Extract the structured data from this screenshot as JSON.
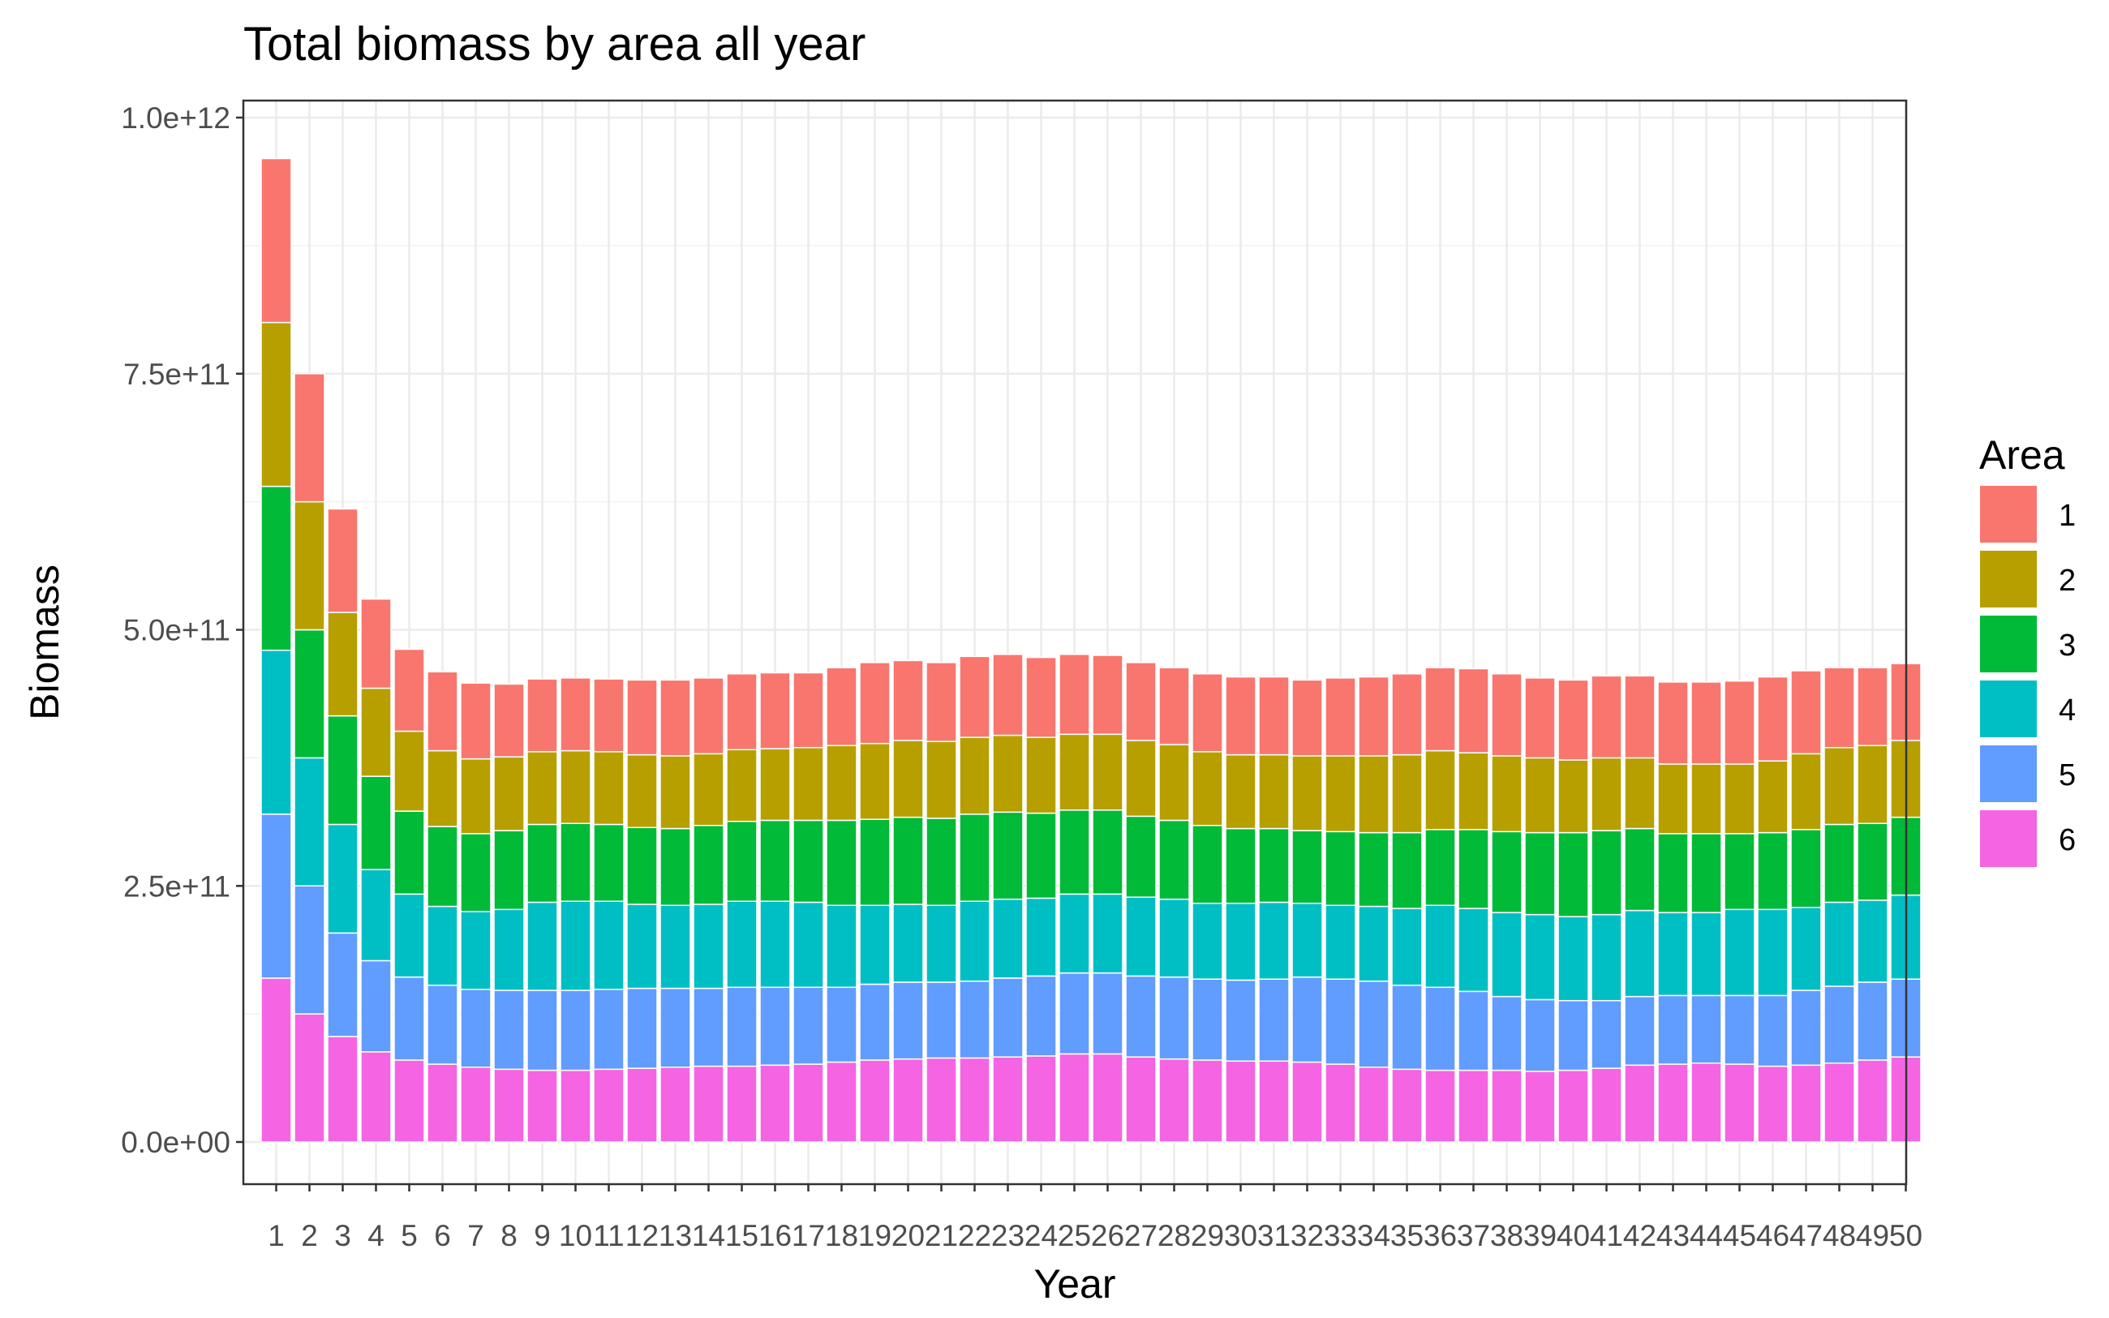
{
  "chart_data": {
    "type": "bar",
    "stacked": true,
    "title": "Total biomass by area all year",
    "xlabel": "Year",
    "ylabel": "Biomass",
    "ylim": [
      0,
      1000000000000
    ],
    "yticks": [
      0,
      250000000000,
      500000000000,
      750000000000,
      1000000000000
    ],
    "ytick_labels": [
      "0.0e+00",
      "2.5e+11",
      "5.0e+11",
      "7.5e+11",
      "1.0e+12"
    ],
    "grid": true,
    "legend": {
      "title": "Area",
      "position": "right"
    },
    "categories": [
      "1",
      "2",
      "3",
      "4",
      "5",
      "6",
      "7",
      "8",
      "9",
      "10",
      "11",
      "12",
      "13",
      "14",
      "15",
      "16",
      "17",
      "18",
      "19",
      "20",
      "21",
      "22",
      "23",
      "24",
      "25",
      "26",
      "27",
      "28",
      "29",
      "30",
      "31",
      "32",
      "33",
      "34",
      "35",
      "36",
      "37",
      "38",
      "39",
      "40",
      "41",
      "42",
      "43",
      "44",
      "45",
      "46",
      "47",
      "48",
      "49",
      "50"
    ],
    "series": [
      {
        "name": "6",
        "color": "#F564E3",
        "values": [
          160000000000.0,
          125000000000.0,
          103000000000.0,
          88000000000.0,
          80000000000.0,
          76000000000.0,
          73000000000.0,
          71000000000.0,
          70000000000.0,
          70000000000.0,
          71000000000.0,
          72000000000.0,
          73000000000.0,
          74000000000.0,
          74000000000.0,
          75000000000.0,
          76000000000.0,
          78000000000.0,
          80000000000.0,
          81000000000.0,
          82000000000.0,
          82000000000.0,
          83000000000.0,
          84000000000.0,
          86000000000.0,
          86000000000.0,
          83000000000.0,
          81000000000.0,
          80000000000.0,
          79000000000.0,
          79000000000.0,
          78000000000.0,
          76000000000.0,
          73000000000.0,
          71000000000.0,
          70000000000.0,
          70000000000.0,
          70000000000.0,
          69000000000.0,
          70000000000.0,
          72000000000.0,
          75000000000.0,
          76000000000.0,
          77000000000.0,
          76000000000.0,
          74000000000.0,
          75000000000.0,
          77000000000.0,
          80000000000.0,
          83000000000.0
        ]
      },
      {
        "name": "5",
        "color": "#619CFF",
        "values": [
          160000000000.0,
          125000000000.0,
          101000000000.0,
          89000000000.0,
          81000000000.0,
          77000000000.0,
          76000000000.0,
          77000000000.0,
          78000000000.0,
          78000000000.0,
          78000000000.0,
          78000000000.0,
          77000000000.0,
          76000000000.0,
          77000000000.0,
          76000000000.0,
          75000000000.0,
          73000000000.0,
          74000000000.0,
          75000000000.0,
          74000000000.0,
          75000000000.0,
          77000000000.0,
          78000000000.0,
          79000000000.0,
          79000000000.0,
          79000000000.0,
          80000000000.0,
          79000000000.0,
          79000000000.0,
          80000000000.0,
          83000000000.0,
          83000000000.0,
          84000000000.0,
          82000000000.0,
          81000000000.0,
          77000000000.0,
          72000000000.0,
          70000000000.0,
          68000000000.0,
          66000000000.0,
          67000000000.0,
          67000000000.0,
          66000000000.0,
          67000000000.0,
          69000000000.0,
          73000000000.0,
          75000000000.0,
          76000000000.0,
          76000000000.0
        ]
      },
      {
        "name": "4",
        "color": "#00BFC4",
        "values": [
          160000000000.0,
          125000000000.0,
          106000000000.0,
          89000000000.0,
          81000000000.0,
          77000000000.0,
          76000000000.0,
          79000000000.0,
          86000000000.0,
          87000000000.0,
          86000000000.0,
          82000000000.0,
          81000000000.0,
          82000000000.0,
          84000000000.0,
          84000000000.0,
          83000000000.0,
          80000000000.0,
          77000000000.0,
          76000000000.0,
          75000000000.0,
          78000000000.0,
          77000000000.0,
          76000000000.0,
          77000000000.0,
          77000000000.0,
          77000000000.0,
          76000000000.0,
          74000000000.0,
          75000000000.0,
          75000000000.0,
          72000000000.0,
          72000000000.0,
          73000000000.0,
          75000000000.0,
          80000000000.0,
          81000000000.0,
          82000000000.0,
          83000000000.0,
          82000000000.0,
          84000000000.0,
          84000000000.0,
          81000000000.0,
          81000000000.0,
          84000000000.0,
          84000000000.0,
          81000000000.0,
          82000000000.0,
          80000000000.0,
          82000000000.0
        ]
      },
      {
        "name": "3",
        "color": "#00BA38",
        "values": [
          160000000000.0,
          125000000000.0,
          106000000000.0,
          91000000000.0,
          81000000000.0,
          78000000000.0,
          76000000000.0,
          77000000000.0,
          76000000000.0,
          76000000000.0,
          75000000000.0,
          75000000000.0,
          75000000000.0,
          77000000000.0,
          78000000000.0,
          79000000000.0,
          80000000000.0,
          83000000000.0,
          84000000000.0,
          85000000000.0,
          85000000000.0,
          85000000000.0,
          85000000000.0,
          83000000000.0,
          82000000000.0,
          82000000000.0,
          79000000000.0,
          77000000000.0,
          76000000000.0,
          73000000000.0,
          72000000000.0,
          71000000000.0,
          72000000000.0,
          72000000000.0,
          74000000000.0,
          74000000000.0,
          77000000000.0,
          79000000000.0,
          80000000000.0,
          82000000000.0,
          82000000000.0,
          80000000000.0,
          77000000000.0,
          77000000000.0,
          74000000000.0,
          75000000000.0,
          76000000000.0,
          76000000000.0,
          75000000000.0,
          76000000000.0
        ]
      },
      {
        "name": "2",
        "color": "#B79F00",
        "values": [
          160000000000.0,
          125000000000.0,
          101000000000.0,
          86000000000.0,
          78000000000.0,
          74000000000.0,
          73000000000.0,
          72000000000.0,
          71000000000.0,
          71000000000.0,
          71000000000.0,
          71000000000.0,
          71000000000.0,
          70000000000.0,
          70000000000.0,
          70000000000.0,
          71000000000.0,
          73000000000.0,
          74000000000.0,
          75000000000.0,
          75000000000.0,
          75000000000.0,
          75000000000.0,
          74000000000.0,
          74000000000.0,
          74000000000.0,
          74000000000.0,
          74000000000.0,
          72000000000.0,
          72000000000.0,
          72000000000.0,
          73000000000.0,
          74000000000.0,
          75000000000.0,
          76000000000.0,
          77000000000.0,
          75000000000.0,
          74000000000.0,
          73000000000.0,
          71000000000.0,
          71000000000.0,
          69000000000.0,
          68000000000.0,
          68000000000.0,
          68000000000.0,
          70000000000.0,
          74000000000.0,
          75000000000.0,
          76000000000.0,
          75000000000.0
        ]
      },
      {
        "name": "1",
        "color": "#F8766D",
        "values": [
          160000000000.0,
          125000000000.0,
          101000000000.0,
          87000000000.0,
          80000000000.0,
          77000000000.0,
          74000000000.0,
          71000000000.0,
          71000000000.0,
          71000000000.0,
          71000000000.0,
          73000000000.0,
          74000000000.0,
          74000000000.0,
          74000000000.0,
          74000000000.0,
          73000000000.0,
          76000000000.0,
          79000000000.0,
          78000000000.0,
          77000000000.0,
          79000000000.0,
          79000000000.0,
          78000000000.0,
          78000000000.0,
          77000000000.0,
          76000000000.0,
          75000000000.0,
          76000000000.0,
          76000000000.0,
          76000000000.0,
          74000000000.0,
          76000000000.0,
          77000000000.0,
          79000000000.0,
          81000000000.0,
          82000000000.0,
          80000000000.0,
          78000000000.0,
          78000000000.0,
          80000000000.0,
          80000000000.0,
          80000000000.0,
          80000000000.0,
          81000000000.0,
          82000000000.0,
          81000000000.0,
          78000000000.0,
          76000000000.0,
          75000000000.0
        ]
      }
    ]
  }
}
